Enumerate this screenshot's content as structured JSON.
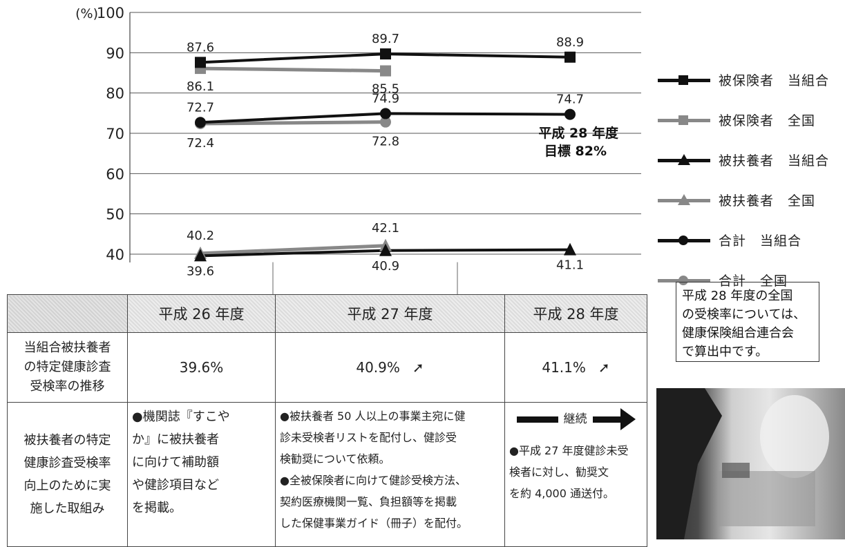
{
  "chart_data": {
    "type": "line",
    "y_unit_label": "(%)",
    "ylim": [
      40,
      100
    ],
    "yticks": [
      40,
      50,
      60,
      70,
      80,
      90,
      100
    ],
    "categories": [
      "平成 26 年度",
      "平成 27 年度",
      "平成 28 年度"
    ],
    "series": [
      {
        "name": "被保険者　当組合",
        "values": [
          87.6,
          89.7,
          88.9
        ],
        "color": "#111111",
        "marker": "square",
        "labels": [
          "87.6",
          "89.7",
          "88.9"
        ]
      },
      {
        "name": "被保険者　全国",
        "values": [
          86.1,
          85.5,
          null
        ],
        "color": "#888888",
        "marker": "square",
        "labels": [
          "86.1",
          "85.5",
          ""
        ]
      },
      {
        "name": "被扶養者　当組合",
        "values": [
          39.6,
          40.9,
          41.1
        ],
        "color": "#111111",
        "marker": "triangle",
        "labels": [
          "39.6",
          "40.9",
          "41.1"
        ]
      },
      {
        "name": "被扶養者　全国",
        "values": [
          40.2,
          42.1,
          null
        ],
        "color": "#888888",
        "marker": "triangle",
        "labels": [
          "40.2",
          "42.1",
          ""
        ]
      },
      {
        "name": "合計　当組合",
        "values": [
          72.7,
          74.9,
          74.7
        ],
        "color": "#111111",
        "marker": "circle",
        "labels": [
          "72.7",
          "74.9",
          "74.7"
        ]
      },
      {
        "name": "合計　全国",
        "values": [
          72.4,
          72.8,
          null
        ],
        "color": "#888888",
        "marker": "circle",
        "labels": [
          "72.4",
          "72.8",
          ""
        ]
      }
    ],
    "annotation": {
      "line1": "平成 28 年度",
      "line2": "目標 82%"
    },
    "legend_position": "right"
  },
  "note": {
    "lines": [
      "平成 28 年度の全国",
      "の受検率については、",
      "健康保険組合連合会",
      "で算出中です。"
    ]
  },
  "table": {
    "headers": [
      "平成 26 年度",
      "平成 27 年度",
      "平成 28 年度"
    ],
    "row1": {
      "label_lines": [
        "当組合被扶養者",
        "の特定健康診査",
        "受検率の推移"
      ],
      "values": [
        "39.6%",
        "40.9%",
        "41.1%"
      ],
      "arrow_icon": "up-right-arrow-icon"
    },
    "row2": {
      "label_lines": [
        "被扶養者の特定",
        "健康診査受検率",
        "向上のために実",
        "施した取組み"
      ],
      "h26_lines": [
        "●機関誌『すこや",
        "か』に被扶養者",
        "に向けて補助額",
        "や健診項目など",
        "を掲載。"
      ],
      "h27_lines": [
        "●被扶養者 50 人以上の事業主宛に健",
        "診未受検者リストを配付し、健診受",
        "検勧奨について依頼。",
        "●全被保険者に向けて健診受検方法、",
        "契約医療機関一覧、負担額等を掲載",
        "した保健事業ガイド（冊子）を配付。"
      ],
      "h28_continue": "継続",
      "h28_lines": [
        "●平成 27 年度健診未受",
        "検者に対し、勧奨文",
        "を約 4,000 通送付。"
      ]
    }
  }
}
